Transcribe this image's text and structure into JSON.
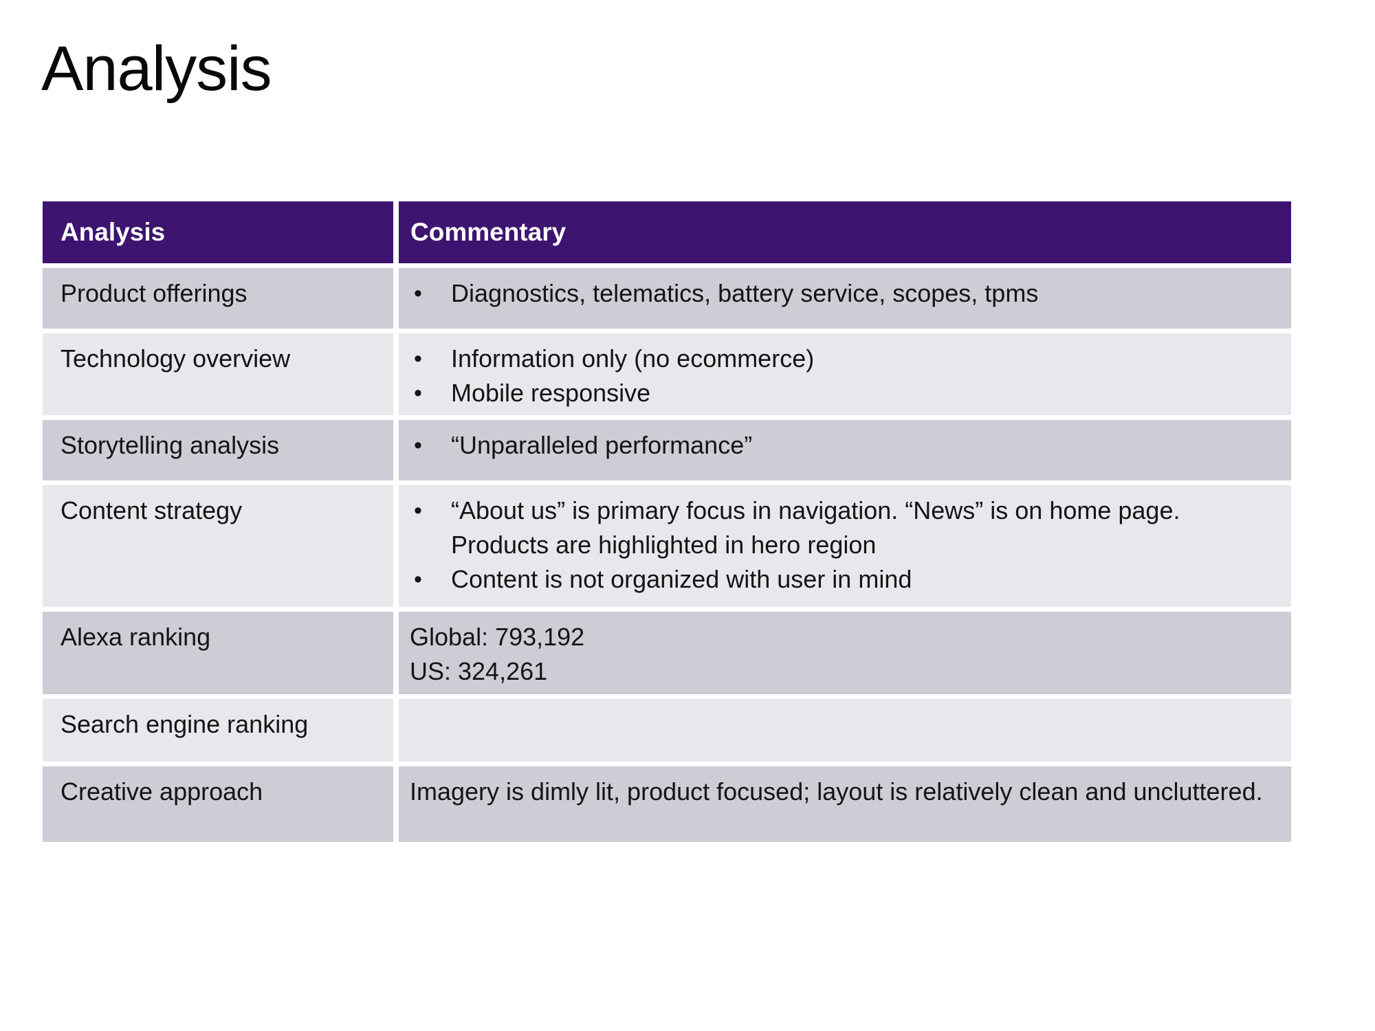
{
  "slide": {
    "title": "Analysis"
  },
  "table": {
    "columns": [
      "Analysis",
      "Commentary"
    ],
    "rows": [
      {
        "label": "Product offerings",
        "bullets": [
          "Diagnostics, telematics, battery service, scopes, tpms"
        ]
      },
      {
        "label": "Technology overview",
        "bullets": [
          "Information only (no ecommerce)",
          "Mobile responsive"
        ]
      },
      {
        "label": "Storytelling analysis",
        "bullets": [
          "“Unparalleled performance”"
        ]
      },
      {
        "label": "Content strategy",
        "bullets": [
          "“About us” is primary focus in navigation. “News” is on home page. Products are highlighted in hero region",
          "Content is not organized with user in mind"
        ]
      },
      {
        "label": "Alexa ranking",
        "lines": [
          "Global: 793,192",
          "US: 324,261"
        ]
      },
      {
        "label": "Search engine ranking",
        "lines": []
      },
      {
        "label": "Creative approach",
        "lines": [
          "Imagery is dimly lit, product focused; layout is relatively clean and uncluttered."
        ]
      }
    ],
    "colors": {
      "header_bg": "#3D1470",
      "header_text": "#FFFFFF",
      "row_dark": "#CECDD6",
      "row_light": "#E8E7EC",
      "body_text": "#141414"
    }
  }
}
